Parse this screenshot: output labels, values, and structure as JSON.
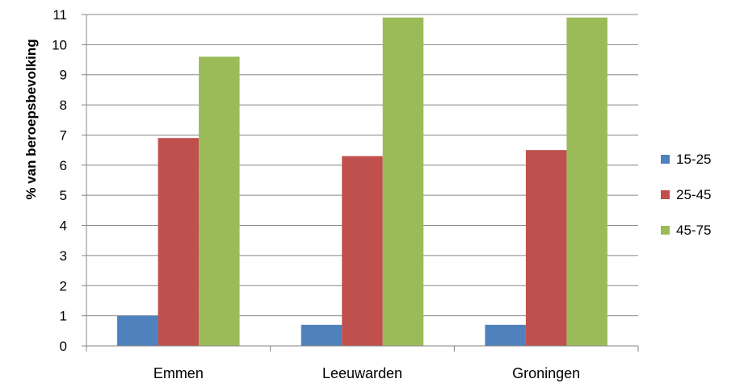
{
  "chart_data": {
    "type": "bar",
    "title": "",
    "xlabel": "",
    "ylabel": "% van beroepsbevolking",
    "ylim": [
      0,
      11
    ],
    "yticks": [
      0,
      1,
      2,
      3,
      4,
      5,
      6,
      7,
      8,
      9,
      10,
      11
    ],
    "grid": true,
    "legend_position": "right",
    "categories": [
      "Emmen",
      "Leeuwarden",
      "Groningen"
    ],
    "series": [
      {
        "name": "15-25",
        "color": "#4F81BD",
        "values": [
          1.0,
          0.7,
          0.7
        ]
      },
      {
        "name": "25-45",
        "color": "#C0504D",
        "values": [
          6.9,
          6.3,
          6.5
        ]
      },
      {
        "name": "45-75",
        "color": "#9BBB59",
        "values": [
          9.6,
          10.9,
          10.9
        ]
      }
    ]
  }
}
